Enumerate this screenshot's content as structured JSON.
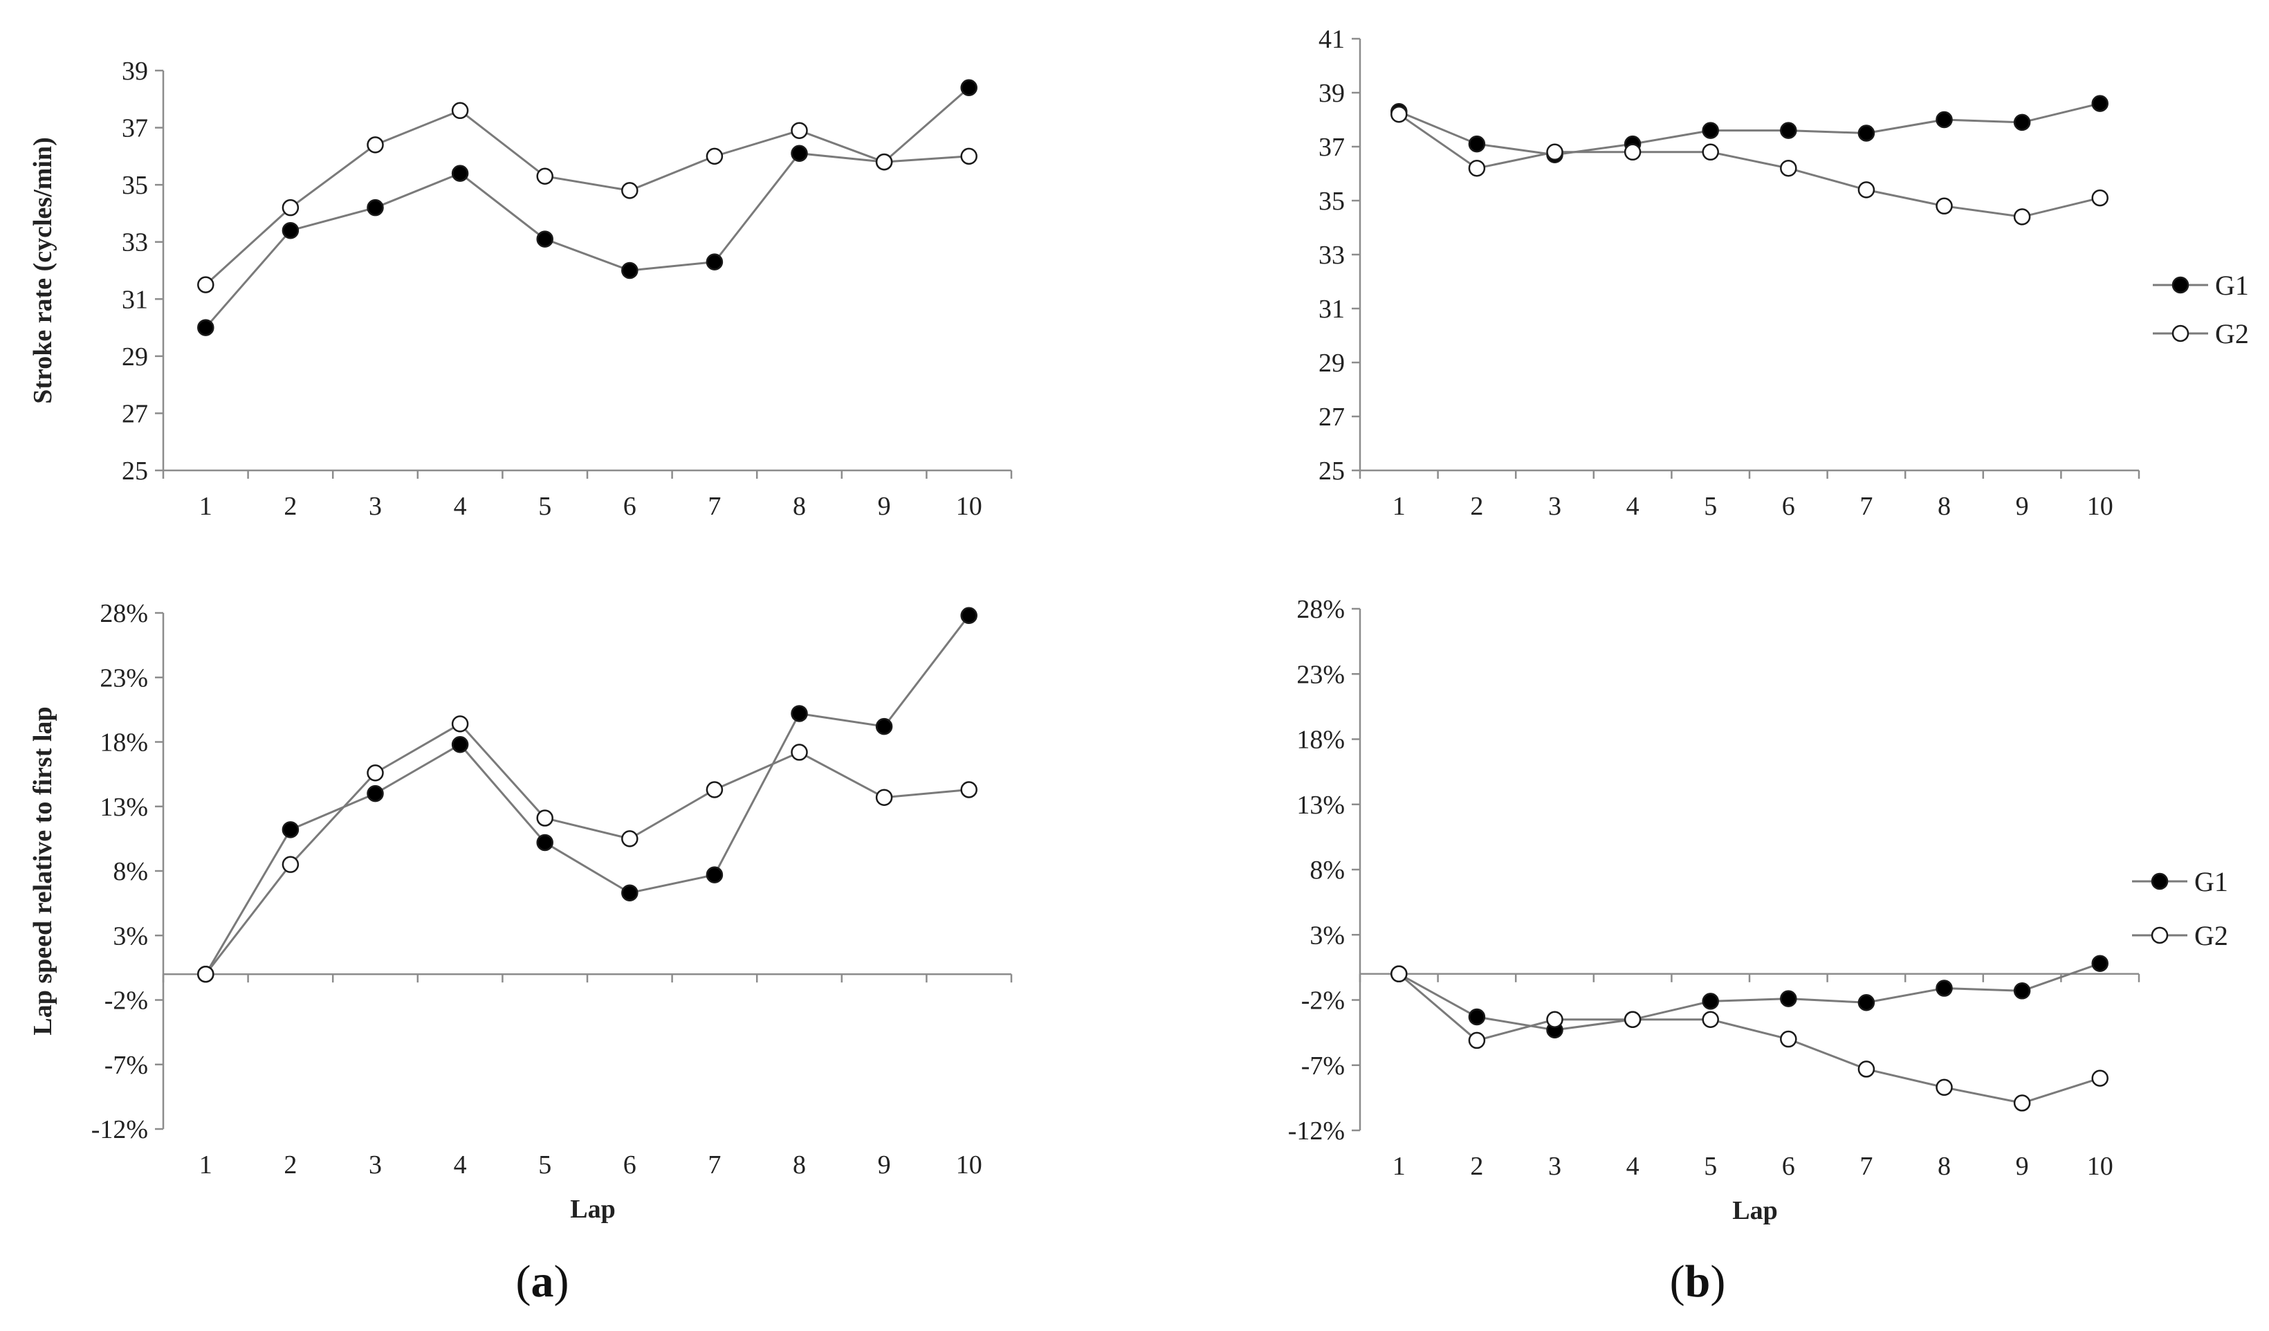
{
  "colors": {
    "axis": "#8c8c8c",
    "line": "#7a7a7a",
    "marker_stroke": "#1a1a1a",
    "g1_fill": "#000000",
    "g2_fill": "#ffffff"
  },
  "chart_data": [
    {
      "id": "a_top",
      "type": "line",
      "categories": [
        "1",
        "2",
        "3",
        "4",
        "5",
        "6",
        "7",
        "8",
        "9",
        "10"
      ],
      "ylabel": "Stroke rate (cycles/min)",
      "xlabel": "",
      "ylim": [
        25,
        39
      ],
      "yticks": [
        25,
        27,
        29,
        31,
        33,
        35,
        37,
        39
      ],
      "ytick_labels": [
        "25",
        "27",
        "29",
        "31",
        "33",
        "35",
        "37",
        "39"
      ],
      "series": [
        {
          "name": "G1",
          "values": [
            30.0,
            33.4,
            34.2,
            35.4,
            33.1,
            32.0,
            32.3,
            36.1,
            35.8,
            38.4
          ]
        },
        {
          "name": "G2",
          "values": [
            31.5,
            34.2,
            36.4,
            37.6,
            35.3,
            34.8,
            36.0,
            36.9,
            35.8,
            36.0
          ]
        }
      ],
      "legend": null
    },
    {
      "id": "b_top",
      "type": "line",
      "categories": [
        "1",
        "2",
        "3",
        "4",
        "5",
        "6",
        "7",
        "8",
        "9",
        "10"
      ],
      "ylabel": "",
      "xlabel": "",
      "ylim": [
        25,
        41
      ],
      "yticks": [
        25,
        27,
        29,
        31,
        33,
        35,
        37,
        39,
        41
      ],
      "ytick_labels": [
        "25",
        "27",
        "29",
        "31",
        "33",
        "35",
        "37",
        "39",
        "41"
      ],
      "series": [
        {
          "name": "G1",
          "values": [
            38.3,
            37.1,
            36.7,
            37.1,
            37.6,
            37.6,
            37.5,
            38.0,
            37.9,
            38.6
          ]
        },
        {
          "name": "G2",
          "values": [
            38.2,
            36.2,
            36.8,
            36.8,
            36.8,
            36.2,
            35.4,
            34.8,
            34.4,
            35.1
          ]
        }
      ],
      "legend": [
        "G1",
        "G2"
      ]
    },
    {
      "id": "a_bottom",
      "type": "line",
      "categories": [
        "1",
        "2",
        "3",
        "4",
        "5",
        "6",
        "7",
        "8",
        "9",
        "10"
      ],
      "ylabel": "Lap speed relative to first lap",
      "xlabel": "Lap",
      "ylim": [
        -12,
        28
      ],
      "yticks": [
        -12,
        -7,
        -2,
        3,
        8,
        13,
        18,
        23,
        28
      ],
      "ytick_labels": [
        "-12%",
        "-7%",
        "-2%",
        "3%",
        "8%",
        "13%",
        "18%",
        "23%",
        "28%"
      ],
      "series": [
        {
          "name": "G1",
          "values": [
            0.0,
            11.2,
            14.0,
            17.8,
            10.2,
            6.3,
            7.7,
            20.2,
            19.2,
            27.8
          ]
        },
        {
          "name": "G2",
          "values": [
            0.0,
            8.5,
            15.6,
            19.4,
            12.1,
            10.5,
            14.3,
            17.2,
            13.7,
            14.3
          ]
        }
      ],
      "legend": null
    },
    {
      "id": "b_bottom",
      "type": "line",
      "categories": [
        "1",
        "2",
        "3",
        "4",
        "5",
        "6",
        "7",
        "8",
        "9",
        "10"
      ],
      "ylabel": "",
      "xlabel": "Lap",
      "ylim": [
        -12,
        28
      ],
      "yticks": [
        -12,
        -7,
        -2,
        3,
        8,
        13,
        18,
        23,
        28
      ],
      "ytick_labels": [
        "-12%",
        "-7%",
        "-2%",
        "3%",
        "8%",
        "13%",
        "18%",
        "23%",
        "28%"
      ],
      "series": [
        {
          "name": "G1",
          "values": [
            0.0,
            -3.3,
            -4.3,
            -3.5,
            -2.1,
            -1.9,
            -2.2,
            -1.1,
            -1.3,
            0.8
          ]
        },
        {
          "name": "G2",
          "values": [
            0.0,
            -5.1,
            -3.5,
            -3.5,
            -3.5,
            -5.0,
            -7.3,
            -8.7,
            -9.9,
            -8.0
          ]
        }
      ],
      "legend": [
        "G1",
        "G2"
      ]
    }
  ],
  "captions": [
    {
      "open": "(",
      "letter": "a",
      "close": ")"
    },
    {
      "open": "(",
      "letter": "b",
      "close": ")"
    }
  ]
}
